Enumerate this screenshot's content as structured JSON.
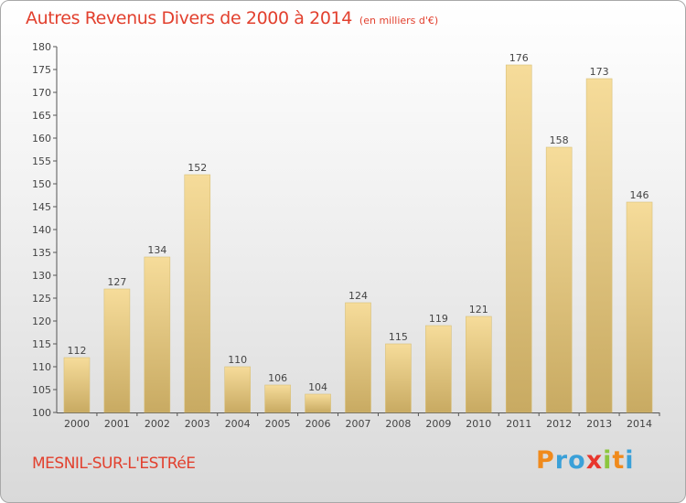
{
  "title": "Autres Revenus Divers de 2000 à 2014",
  "unit": "(en milliers d'€)",
  "city": "MESNIL-SUR-L'ESTRéE",
  "logo": {
    "letters": [
      "P",
      "r",
      "o",
      "x",
      "i",
      "t",
      "i"
    ],
    "colors": [
      "#f08a1c",
      "#3aa0d8",
      "#3aa0d8",
      "#e8362d",
      "#8cc63f",
      "#f08a1c",
      "#3aa0d8"
    ]
  },
  "colors": {
    "bar_light": "#f6dc9a",
    "bar_dark": "#c8aa62",
    "title": "#e2402e"
  },
  "chart_data": {
    "type": "bar",
    "categories": [
      "2000",
      "2001",
      "2002",
      "2003",
      "2004",
      "2005",
      "2006",
      "2007",
      "2008",
      "2009",
      "2010",
      "2011",
      "2012",
      "2013",
      "2014"
    ],
    "values": [
      112,
      127,
      134,
      152,
      110,
      106,
      104,
      124,
      115,
      119,
      121,
      176,
      158,
      173,
      146
    ],
    "title": "Autres Revenus Divers de 2000 à 2014",
    "subtitle": "(en milliers d'€)",
    "ylim": [
      100,
      180
    ],
    "yticks": [
      100,
      105,
      110,
      115,
      120,
      125,
      130,
      135,
      140,
      145,
      150,
      155,
      160,
      165,
      170,
      175,
      180
    ],
    "grid": false,
    "data_labels": true
  }
}
